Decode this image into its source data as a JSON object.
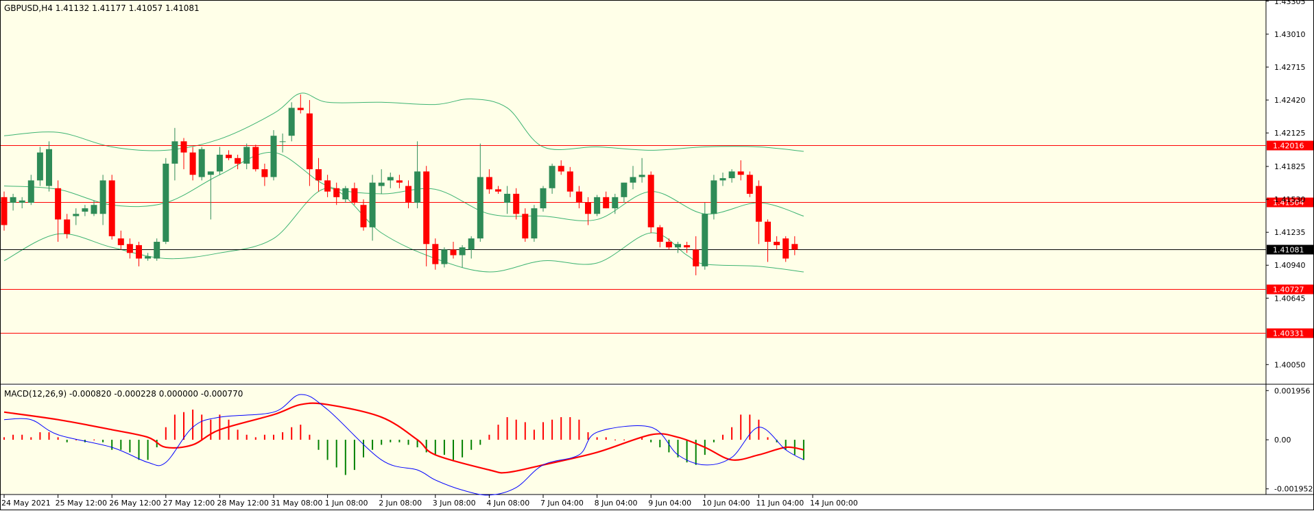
{
  "header": {
    "main_title": "GBPUSD,H4  1.41132 1.41177 1.41057 1.41081",
    "macd_title": "MACD(12,26,9) -0.000820 -0.000228 0.000000 -0.000770"
  },
  "colors": {
    "background": "#ffffe8",
    "axis_background": "#ffffff",
    "bull": "#2e8b57",
    "bear": "#ff0000",
    "bands": "#3cb371",
    "level_line": "#ff0000",
    "price_line": "#000000",
    "macd_main": "#ff0000",
    "macd_signal": "#0000ff",
    "hist_pos": "#ff0000",
    "hist_neg": "#008000"
  },
  "price_axis": {
    "ticks": [
      "1.43305",
      "1.43010",
      "1.42715",
      "1.42420",
      "1.42125",
      "1.41825",
      "1.41530",
      "1.41235",
      "1.40940",
      "1.40645",
      "1.40050"
    ],
    "min": 1.3988,
    "max": 1.4331
  },
  "levels": [
    {
      "label": "1.42016",
      "value": 1.42016
    },
    {
      "label": "1.41504",
      "value": 1.41504
    },
    {
      "label": "1.40727",
      "value": 1.40727
    },
    {
      "label": "1.40331",
      "value": 1.40331
    }
  ],
  "current_price": {
    "label": "1.41081",
    "value": 1.41081
  },
  "time_axis": {
    "labels": [
      "24 May 2021",
      "25 May 12:00",
      "26 May 12:00",
      "27 May 12:00",
      "28 May 12:00",
      "31 May 08:00",
      "1 Jun 08:00",
      "2 Jun 08:00",
      "3 Jun 08:00",
      "4 Jun 08:00",
      "7 Jun 04:00",
      "8 Jun 04:00",
      "9 Jun 04:00",
      "10 Jun 04:00",
      "11 Jun 04:00",
      "14 Jun 00:00"
    ],
    "label_bar_index": [
      0,
      6,
      12,
      18,
      24,
      30,
      36,
      42,
      48,
      54,
      60,
      66,
      72,
      78,
      84,
      90
    ]
  },
  "macd_axis": {
    "ticks": [
      "0.001956",
      "0.00",
      "-0.001952"
    ],
    "min": -0.00215,
    "max": 0.0021
  },
  "chart_data": {
    "type": "candlestick",
    "symbol": "GBPUSD",
    "timeframe": "H4",
    "ohlc": [
      [
        1.4155,
        1.416,
        1.4125,
        1.413
      ],
      [
        1.415,
        1.4158,
        1.4143,
        1.4155
      ],
      [
        1.415,
        1.4155,
        1.4145,
        1.4152
      ],
      [
        1.415,
        1.4175,
        1.4148,
        1.417
      ],
      [
        1.417,
        1.42,
        1.4165,
        1.4195
      ],
      [
        1.4165,
        1.4205,
        1.416,
        1.4198
      ],
      [
        1.4163,
        1.417,
        1.4115,
        1.4135
      ],
      [
        1.4135,
        1.414,
        1.4118,
        1.4122
      ],
      [
        1.4138,
        1.4145,
        1.413,
        1.414
      ],
      [
        1.4142,
        1.4148,
        1.4138,
        1.4145
      ],
      [
        1.414,
        1.4152,
        1.4138,
        1.4148
      ],
      [
        1.414,
        1.4175,
        1.413,
        1.417
      ],
      [
        1.417,
        1.4175,
        1.4117,
        1.412
      ],
      [
        1.4118,
        1.4125,
        1.4108,
        1.4112
      ],
      [
        1.4113,
        1.4118,
        1.41,
        1.4105
      ],
      [
        1.4112,
        1.4115,
        1.4093,
        1.41
      ],
      [
        1.41,
        1.4105,
        1.4098,
        1.4102
      ],
      [
        1.41,
        1.4118,
        1.4098,
        1.4115
      ],
      [
        1.4115,
        1.419,
        1.4113,
        1.4185
      ],
      [
        1.4185,
        1.4217,
        1.417,
        1.4205
      ],
      [
        1.4205,
        1.4208,
        1.418,
        1.4195
      ],
      [
        1.4195,
        1.42,
        1.417,
        1.4175
      ],
      [
        1.4173,
        1.42,
        1.417,
        1.4198
      ],
      [
        1.4175,
        1.4178,
        1.4135,
        1.4178
      ],
      [
        1.4178,
        1.42,
        1.4175,
        1.4193
      ],
      [
        1.4193,
        1.4197,
        1.4188,
        1.419
      ],
      [
        1.419,
        1.4193,
        1.418,
        1.4185
      ],
      [
        1.4185,
        1.4203,
        1.418,
        1.42
      ],
      [
        1.42,
        1.4202,
        1.4178,
        1.418
      ],
      [
        1.418,
        1.4185,
        1.4165,
        1.4173
      ],
      [
        1.4173,
        1.4215,
        1.417,
        1.421
      ],
      [
        1.4205,
        1.4212,
        1.4195,
        1.4205
      ],
      [
        1.421,
        1.424,
        1.4205,
        1.4235
      ],
      [
        1.4235,
        1.4247,
        1.423,
        1.4233
      ],
      [
        1.423,
        1.4242,
        1.4165,
        1.418
      ],
      [
        1.418,
        1.419,
        1.416,
        1.417
      ],
      [
        1.417,
        1.4175,
        1.4155,
        1.416
      ],
      [
        1.4163,
        1.4168,
        1.4148,
        1.4155
      ],
      [
        1.4153,
        1.4165,
        1.415,
        1.4163
      ],
      [
        1.4163,
        1.4168,
        1.4148,
        1.415
      ],
      [
        1.4148,
        1.4153,
        1.4125,
        1.4128
      ],
      [
        1.4128,
        1.4175,
        1.4116,
        1.4168
      ],
      [
        1.4165,
        1.418,
        1.4158,
        1.4168
      ],
      [
        1.417,
        1.4177,
        1.4163,
        1.4173
      ],
      [
        1.417,
        1.4175,
        1.4163,
        1.4168
      ],
      [
        1.4165,
        1.417,
        1.4145,
        1.415
      ],
      [
        1.415,
        1.4205,
        1.4145,
        1.4178
      ],
      [
        1.4178,
        1.4183,
        1.4093,
        1.4113
      ],
      [
        1.4113,
        1.4118,
        1.409,
        1.4095
      ],
      [
        1.4095,
        1.411,
        1.4092,
        1.4108
      ],
      [
        1.4108,
        1.4115,
        1.41,
        1.4103
      ],
      [
        1.4103,
        1.4112,
        1.4092,
        1.411
      ],
      [
        1.4108,
        1.412,
        1.41,
        1.4118
      ],
      [
        1.4118,
        1.4203,
        1.4115,
        1.4173
      ],
      [
        1.4173,
        1.418,
        1.4158,
        1.4162
      ],
      [
        1.4162,
        1.4165,
        1.4158,
        1.416
      ],
      [
        1.415,
        1.4165,
        1.414,
        1.4158
      ],
      [
        1.4158,
        1.4163,
        1.4135,
        1.414
      ],
      [
        1.414,
        1.4145,
        1.4115,
        1.4118
      ],
      [
        1.4118,
        1.4148,
        1.4115,
        1.4145
      ],
      [
        1.4145,
        1.4165,
        1.4142,
        1.4163
      ],
      [
        1.4163,
        1.4185,
        1.4158,
        1.4183
      ],
      [
        1.4183,
        1.4188,
        1.4175,
        1.4178
      ],
      [
        1.4178,
        1.4182,
        1.4155,
        1.416
      ],
      [
        1.416,
        1.4165,
        1.4145,
        1.415
      ],
      [
        1.415,
        1.4155,
        1.413,
        1.414
      ],
      [
        1.414,
        1.4157,
        1.4138,
        1.4155
      ],
      [
        1.4155,
        1.416,
        1.4145,
        1.4145
      ],
      [
        1.4145,
        1.4158,
        1.414,
        1.4155
      ],
      [
        1.4155,
        1.4168,
        1.415,
        1.4168
      ],
      [
        1.4168,
        1.4183,
        1.4162,
        1.4173
      ],
      [
        1.4173,
        1.419,
        1.4168,
        1.4175
      ],
      [
        1.4175,
        1.4178,
        1.4123,
        1.4128
      ],
      [
        1.4128,
        1.413,
        1.411,
        1.4115
      ],
      [
        1.4115,
        1.4118,
        1.4108,
        1.411
      ],
      [
        1.411,
        1.4115,
        1.4105,
        1.4113
      ],
      [
        1.4112,
        1.4115,
        1.4105,
        1.411
      ],
      [
        1.4108,
        1.412,
        1.4085,
        1.4093
      ],
      [
        1.4093,
        1.415,
        1.409,
        1.414
      ],
      [
        1.414,
        1.4175,
        1.4135,
        1.417
      ],
      [
        1.417,
        1.4177,
        1.4165,
        1.4172
      ],
      [
        1.4172,
        1.418,
        1.4168,
        1.4178
      ],
      [
        1.4178,
        1.4188,
        1.417,
        1.4175
      ],
      [
        1.4175,
        1.4178,
        1.4155,
        1.4158
      ],
      [
        1.4165,
        1.417,
        1.4113,
        1.4133
      ],
      [
        1.4133,
        1.4135,
        1.4097,
        1.4115
      ],
      [
        1.4115,
        1.412,
        1.4108,
        1.4112
      ],
      [
        1.4118,
        1.412,
        1.4097,
        1.41
      ],
      [
        1.4113,
        1.412,
        1.4103,
        1.4108
      ]
    ],
    "bollinger": {
      "upper": [
        [
          0,
          1.421
        ],
        [
          6,
          1.4213
        ],
        [
          12,
          1.42
        ],
        [
          18,
          1.4197
        ],
        [
          24,
          1.4207
        ],
        [
          30,
          1.423
        ],
        [
          33,
          1.4248
        ],
        [
          36,
          1.424
        ],
        [
          42,
          1.424
        ],
        [
          48,
          1.4238
        ],
        [
          52,
          1.4243
        ],
        [
          56,
          1.4235
        ],
        [
          60,
          1.42
        ],
        [
          66,
          1.42
        ],
        [
          72,
          1.4197
        ],
        [
          78,
          1.42
        ],
        [
          84,
          1.42
        ],
        [
          89,
          1.4196
        ]
      ],
      "middle": [
        [
          0,
          1.4165
        ],
        [
          6,
          1.4162
        ],
        [
          12,
          1.4148
        ],
        [
          18,
          1.415
        ],
        [
          24,
          1.4175
        ],
        [
          30,
          1.4195
        ],
        [
          36,
          1.4165
        ],
        [
          42,
          1.4158
        ],
        [
          48,
          1.4162
        ],
        [
          54,
          1.414
        ],
        [
          60,
          1.4138
        ],
        [
          66,
          1.4135
        ],
        [
          72,
          1.416
        ],
        [
          78,
          1.414
        ],
        [
          84,
          1.415
        ],
        [
          89,
          1.4138
        ]
      ],
      "lower": [
        [
          0,
          1.4098
        ],
        [
          6,
          1.4122
        ],
        [
          12,
          1.411
        ],
        [
          18,
          1.41
        ],
        [
          24,
          1.4105
        ],
        [
          30,
          1.4118
        ],
        [
          36,
          1.4163
        ],
        [
          42,
          1.4123
        ],
        [
          48,
          1.41
        ],
        [
          54,
          1.4088
        ],
        [
          60,
          1.4098
        ],
        [
          66,
          1.4096
        ],
        [
          72,
          1.4123
        ],
        [
          76,
          1.4103
        ],
        [
          78,
          1.4095
        ],
        [
          84,
          1.4093
        ],
        [
          89,
          1.4088
        ]
      ]
    },
    "macd": {
      "histogram": [
        0.0001,
        0.0002,
        0.0002,
        0.0001,
        0.0003,
        0.0003,
        0.0001,
        -0.0001,
        0,
        -0.0001,
        0,
        -0.0001,
        -0.0004,
        -0.0004,
        -0.0005,
        -0.0008,
        -0.0008,
        -0.0003,
        0.0005,
        0.001,
        0.0011,
        0.0012,
        0.001,
        0.0008,
        0.001,
        0.0008,
        0.0004,
        0.0002,
        0.0001,
        0.0002,
        0.0002,
        0.0003,
        0.0005,
        0.0006,
        0.0002,
        -0.0004,
        -0.0008,
        -0.0011,
        -0.0014,
        -0.0012,
        -0.0007,
        -0.0004,
        -0.0002,
        -0.0001,
        -0.0001,
        -0.0002,
        -0.0003,
        -0.0005,
        -0.0006,
        -0.0006,
        -0.0008,
        -0.0007,
        -0.0004,
        -0.0002,
        0.0002,
        0.0006,
        0.0009,
        0.0008,
        0.0007,
        0.0004,
        0.0007,
        0.0008,
        0.0009,
        0.0009,
        0.0008,
        0.0003,
        0.0001,
        0.0001,
        0,
        0,
        0,
        0.0001,
        -0.0001,
        -0.0003,
        -0.0005,
        -0.0007,
        -0.0009,
        -0.001,
        -0.0006,
        -0.0001,
        0.0002,
        0.0005,
        0.001,
        0.001,
        0.0008,
        0.0001,
        -0.0001,
        -0.0004,
        -0.0006,
        -0.0008
      ],
      "signal_main": [
        [
          0,
          0.0011
        ],
        [
          6,
          0.0008
        ],
        [
          12,
          0.0004
        ],
        [
          16,
          0.0001
        ],
        [
          18,
          -0.0003
        ],
        [
          21,
          -0.0002
        ],
        [
          24,
          0.0004
        ],
        [
          30,
          0.001
        ],
        [
          33,
          0.0014
        ],
        [
          36,
          0.0014
        ],
        [
          42,
          0.0009
        ],
        [
          46,
          0.0
        ],
        [
          48,
          -0.0006
        ],
        [
          54,
          -0.0012
        ],
        [
          56,
          -0.0013
        ],
        [
          60,
          -0.001
        ],
        [
          66,
          -0.0005
        ],
        [
          72,
          0.0002
        ],
        [
          75,
          0.0001
        ],
        [
          78,
          -0.0003
        ],
        [
          81,
          -0.0008
        ],
        [
          84,
          -0.0006
        ],
        [
          87,
          -0.0003
        ],
        [
          89,
          -0.0004
        ]
      ],
      "signal_line": [
        [
          0,
          0.0008
        ],
        [
          3,
          0.0008
        ],
        [
          6,
          0.0002
        ],
        [
          12,
          -0.0003
        ],
        [
          16,
          -0.0009
        ],
        [
          18,
          -0.0009
        ],
        [
          21,
          0.0005
        ],
        [
          24,
          0.0009
        ],
        [
          30,
          0.0011
        ],
        [
          33,
          0.0018
        ],
        [
          36,
          0.0012
        ],
        [
          42,
          -0.0008
        ],
        [
          46,
          -0.0012
        ],
        [
          48,
          -0.0016
        ],
        [
          51,
          -0.002
        ],
        [
          54,
          -0.0022
        ],
        [
          57,
          -0.0019
        ],
        [
          60,
          -0.001
        ],
        [
          64,
          -0.0006
        ],
        [
          66,
          0.0003
        ],
        [
          72,
          0.0005
        ],
        [
          75,
          -0.0006
        ],
        [
          78,
          -0.001
        ],
        [
          81,
          -0.0007
        ],
        [
          84,
          0.0005
        ],
        [
          87,
          -0.0004
        ],
        [
          89,
          -0.0008
        ]
      ]
    }
  }
}
